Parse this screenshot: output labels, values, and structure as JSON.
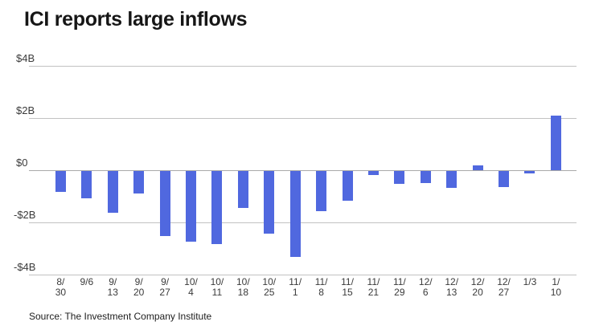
{
  "colors": {
    "bar": "#5068df",
    "grid": "#c2c2c2",
    "zero_line": "#a9a9a9",
    "title_text": "#161616",
    "axis_text": "#3a3a3a"
  },
  "chart_data": {
    "type": "bar",
    "title": "ICI reports large inflows",
    "unit": "billions USD (weekly flows)",
    "categories": [
      "8/30",
      "9/6",
      "9/13",
      "9/20",
      "9/27",
      "10/4",
      "10/11",
      "10/18",
      "10/25",
      "11/1",
      "11/8",
      "11/15",
      "11/21",
      "11/29",
      "12/6",
      "12/13",
      "12/20",
      "12/27",
      "1/3",
      "1/10"
    ],
    "values": [
      -0.8,
      -1.05,
      -1.6,
      -0.85,
      -2.5,
      -2.7,
      -2.8,
      -1.4,
      -2.4,
      -3.3,
      -1.55,
      -1.15,
      -0.15,
      -0.5,
      -0.45,
      -0.65,
      0.2,
      -0.6,
      -0.1,
      2.1
    ],
    "x_tick_lines": [
      [
        "8/",
        "30"
      ],
      [
        "9/6"
      ],
      [
        "9/",
        "13"
      ],
      [
        "9/",
        "20"
      ],
      [
        "9/",
        "27"
      ],
      [
        "10/",
        "4"
      ],
      [
        "10/",
        "11"
      ],
      [
        "10/",
        "18"
      ],
      [
        "10/",
        "25"
      ],
      [
        "11/",
        "1"
      ],
      [
        "11/",
        "8"
      ],
      [
        "11/",
        "15"
      ],
      [
        "11/",
        "21"
      ],
      [
        "11/",
        "29"
      ],
      [
        "12/",
        "6"
      ],
      [
        "12/",
        "13"
      ],
      [
        "12/",
        "20"
      ],
      [
        "12/",
        "27"
      ],
      [
        "1/3"
      ],
      [
        "1/",
        "10"
      ]
    ],
    "yticks": [
      {
        "label": "$4B",
        "value": 4
      },
      {
        "label": "$2B",
        "value": 2
      },
      {
        "label": "$0",
        "value": 0
      },
      {
        "label": "-$2B",
        "value": -2
      },
      {
        "label": "-$4B",
        "value": -4
      }
    ],
    "ylim": [
      -4.5,
      4.5
    ],
    "grid": true,
    "legend": false,
    "source": "Source: The Investment Company Institute"
  }
}
